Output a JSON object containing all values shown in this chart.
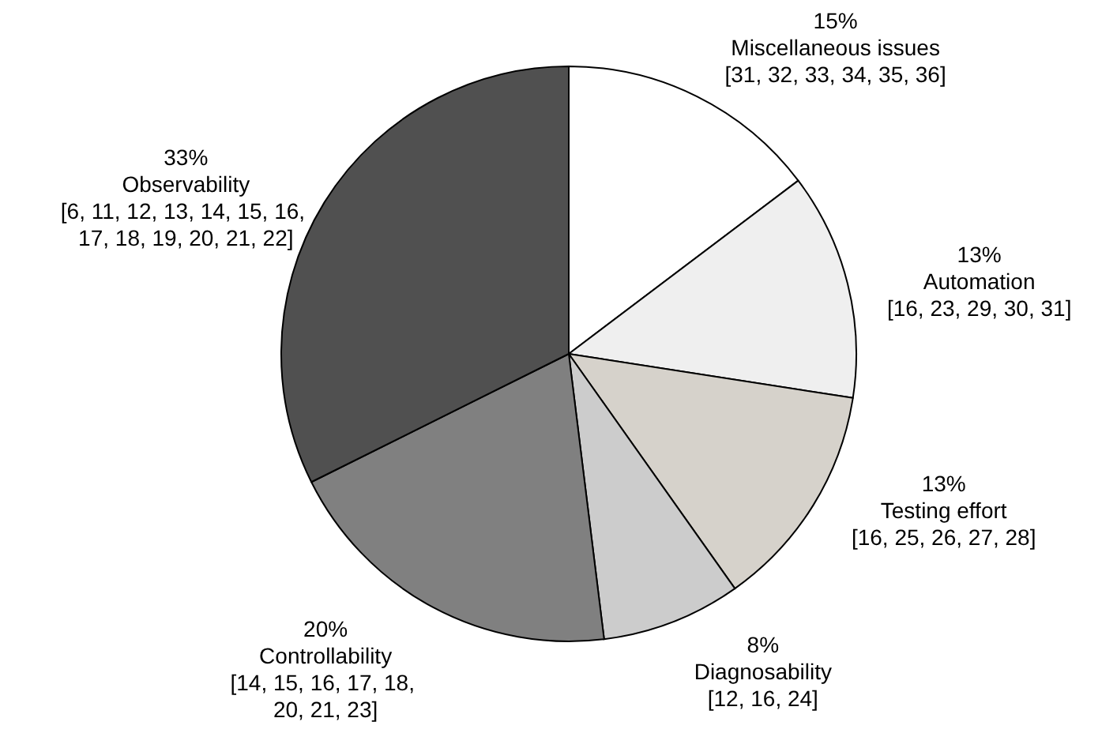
{
  "chart_data": {
    "type": "pie",
    "categories": [
      "Miscellaneous issues",
      "Automation",
      "Testing effort",
      "Diagnosability",
      "Controllability",
      "Observability"
    ],
    "values": [
      15,
      13,
      13,
      8,
      20,
      33
    ],
    "value_labels": [
      "15%",
      "13%",
      "13%",
      "8%",
      "20%",
      "33%"
    ],
    "colors": [
      "#ffffff",
      "#efefef",
      "#d6d2cb",
      "#cccccc",
      "#808080",
      "#505050"
    ],
    "annotations": [
      "[31, 32, 33, 34, 35, 36]",
      "[16, 23, 29, 30, 31]",
      "[16, 25, 26, 27, 28]",
      "[12, 16, 24]",
      "[14, 15, 16, 17, 18, 20, 21, 23]",
      "[6, 11, 12, 13, 14, 15, 16, 17, 18, 19, 20, 21, 22]"
    ],
    "legend": false
  }
}
